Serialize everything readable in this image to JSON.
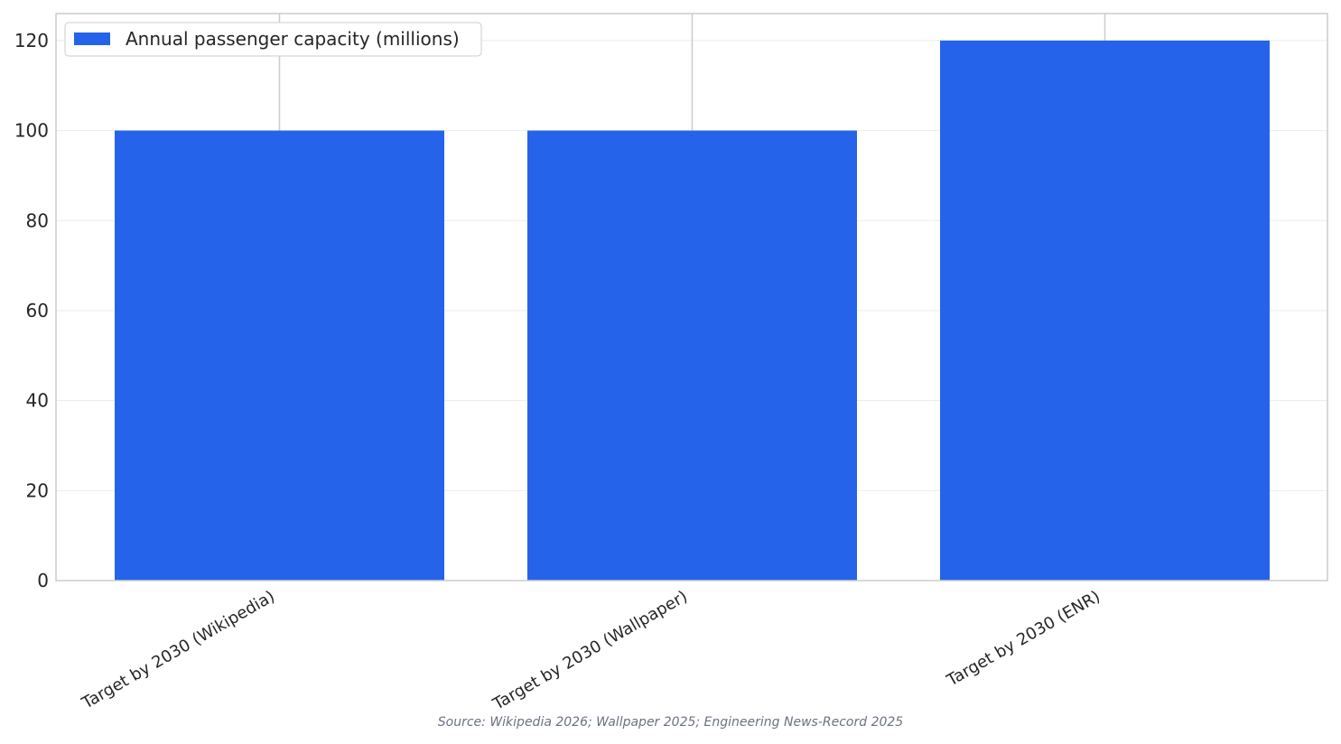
{
  "chart_data": {
    "type": "bar",
    "categories": [
      "Target by 2030 (Wikipedia)",
      "Target by 2030 (Wallpaper)",
      "Target by 2030 (ENR)"
    ],
    "series": [
      {
        "name": "Annual passenger capacity (millions)",
        "values": [
          100,
          100,
          120
        ],
        "color": "#2563eb"
      }
    ],
    "ylim": [
      0,
      126
    ],
    "yticks": [
      0,
      20,
      40,
      60,
      80,
      100,
      120
    ],
    "xlabel": "",
    "ylabel": "",
    "grid": true,
    "legend": "top-left"
  },
  "source_note": "Source: Wikipedia 2026; Wallpaper 2025; Engineering News-Record 2025"
}
